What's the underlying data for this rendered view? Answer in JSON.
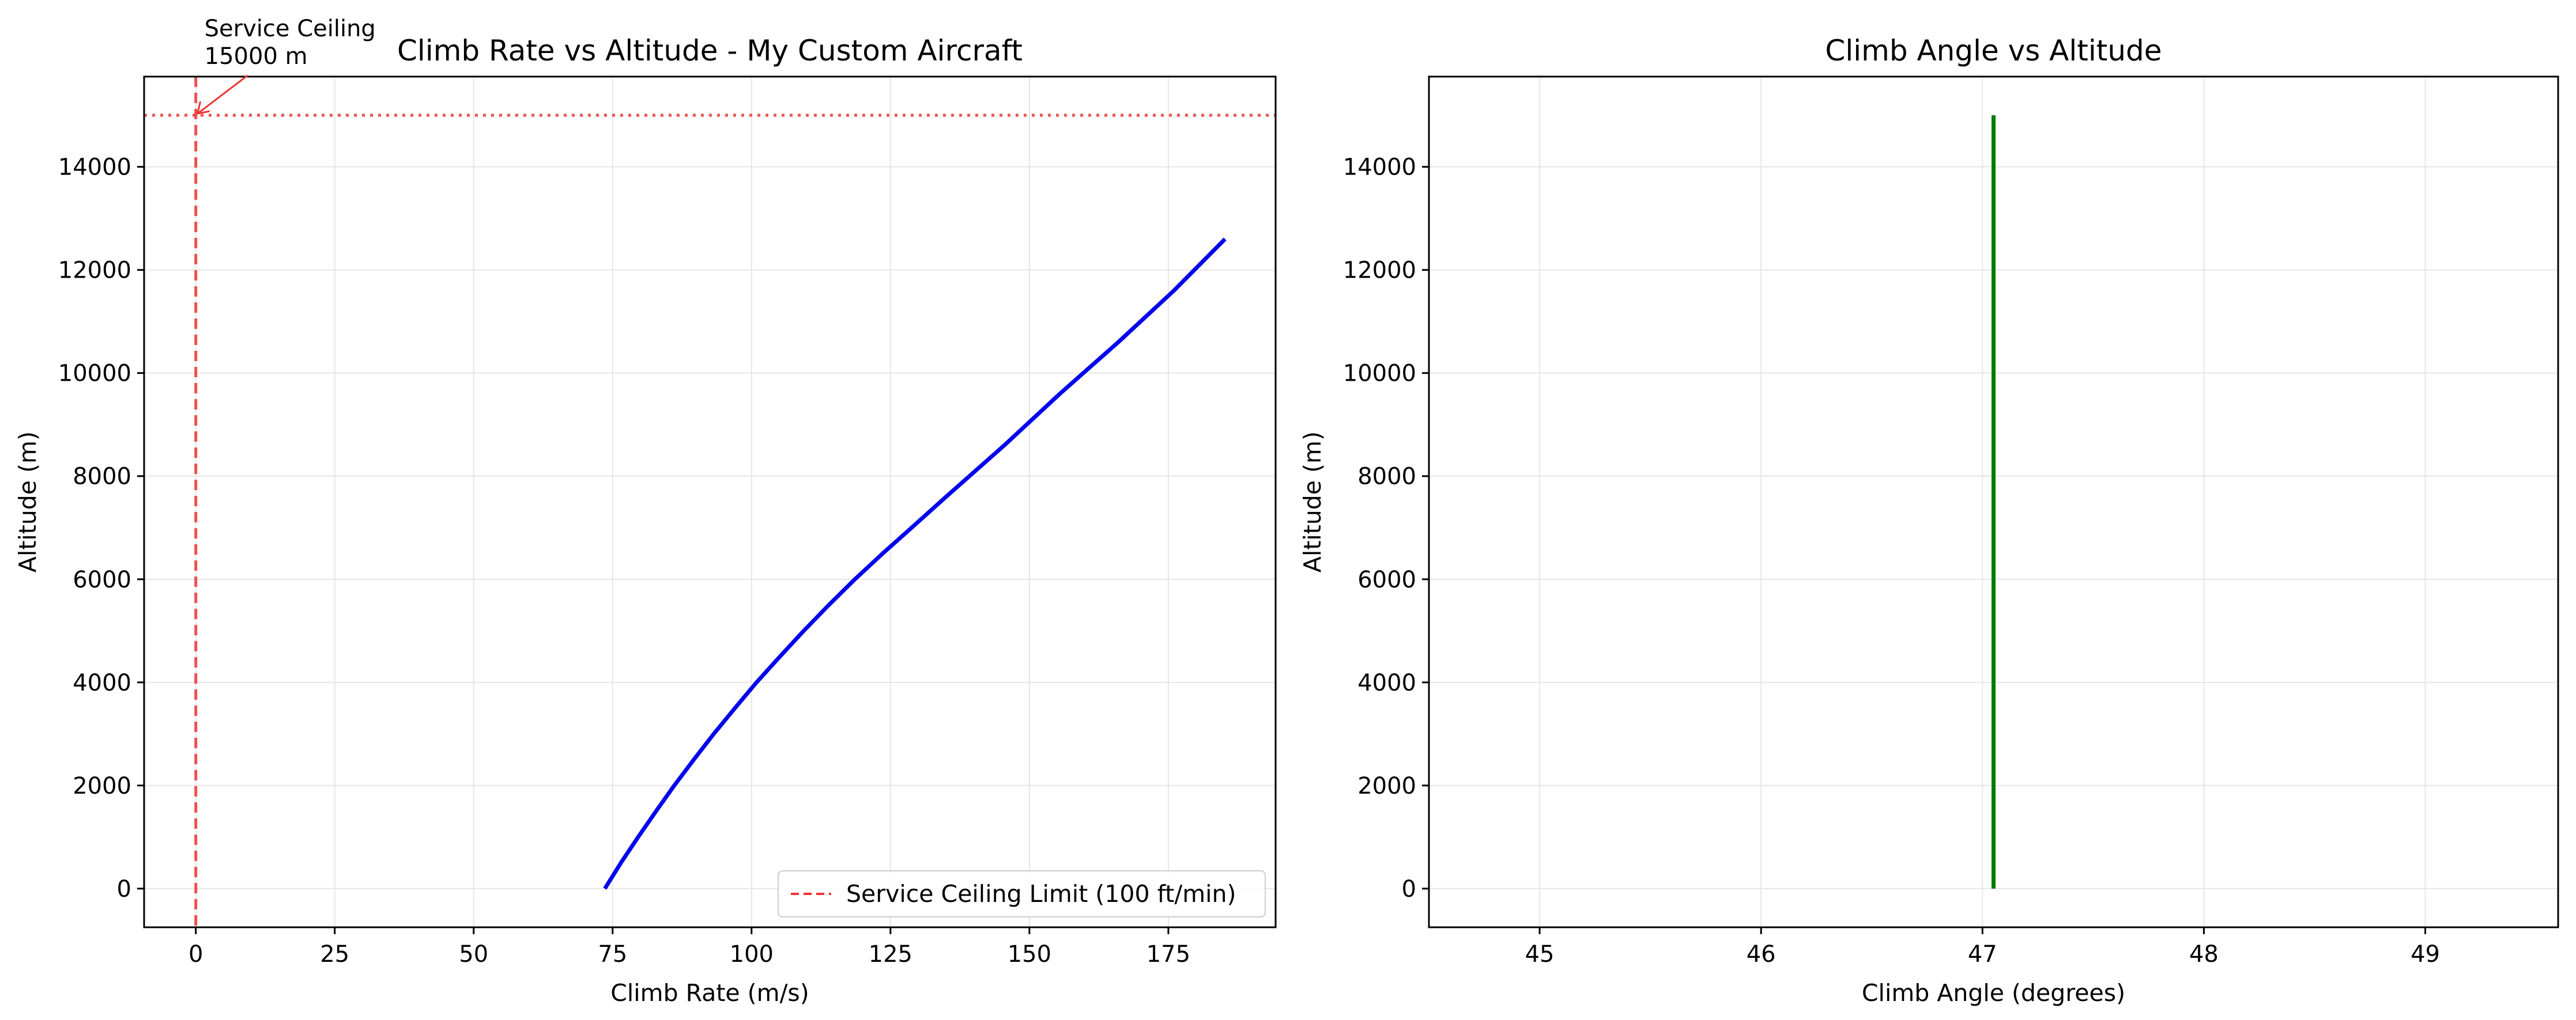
{
  "colors": {
    "climb_rate_line": "#0000ee",
    "climb_angle_line": "#007a00",
    "ceiling_marker": "#ee3333",
    "grid": "#e6e6e6",
    "axes": "#000000"
  },
  "chart_data": [
    {
      "type": "line",
      "title": "Climb Rate vs Altitude - My Custom Aircraft",
      "xlabel": "Climb Rate (m/s)",
      "ylabel": "Altitude (m)",
      "xlim": [
        -9.3,
        194.3
      ],
      "ylim": [
        -750,
        15750
      ],
      "xticks": [
        0,
        25,
        50,
        75,
        100,
        125,
        150,
        175
      ],
      "yticks": [
        0,
        2000,
        4000,
        6000,
        8000,
        10000,
        12000,
        14000
      ],
      "grid": true,
      "legend_position": "lower-right",
      "series": [
        {
          "name": "",
          "color": "#0000ee",
          "x": [
            73.6,
            76.5,
            79.6,
            82.8,
            86.1,
            89.6,
            93.2,
            97.0,
            100.9,
            105.1,
            109.4,
            113.9,
            118.6,
            123.6,
            128.8,
            135.0,
            145.5,
            155.5,
            166.0,
            176.0,
            185.2
          ],
          "y": [
            0,
            500,
            1000,
            1500,
            2000,
            2500,
            3000,
            3500,
            4000,
            4500,
            5000,
            5500,
            6000,
            6500,
            7000,
            7600,
            8600,
            9600,
            10600,
            11600,
            12600
          ]
        }
      ],
      "reference_lines": [
        {
          "orientation": "vertical",
          "value": 0,
          "style": "dashed",
          "label": "Service Ceiling Limit (100 ft/min)"
        },
        {
          "orientation": "horizontal",
          "value": 15000,
          "style": "dotted",
          "label": ""
        }
      ],
      "annotation": {
        "lines": [
          "Service Ceiling",
          "15000 m"
        ],
        "points_to": [
          0,
          15000
        ]
      },
      "legend": [
        {
          "label": "Service Ceiling Limit (100 ft/min)",
          "style": "dashed"
        }
      ]
    },
    {
      "type": "line",
      "title": "Climb Angle vs Altitude",
      "xlabel": "Climb Angle (degrees)",
      "ylabel": "Altitude (m)",
      "xlim": [
        44.5,
        49.6
      ],
      "ylim": [
        -750,
        15750
      ],
      "xticks": [
        45,
        46,
        47,
        48,
        49
      ],
      "yticks": [
        0,
        2000,
        4000,
        6000,
        8000,
        10000,
        12000,
        14000
      ],
      "grid": true,
      "series": [
        {
          "name": "",
          "color": "#007a00",
          "x": [
            47.05,
            47.05
          ],
          "y": [
            0,
            15000
          ]
        }
      ]
    }
  ]
}
